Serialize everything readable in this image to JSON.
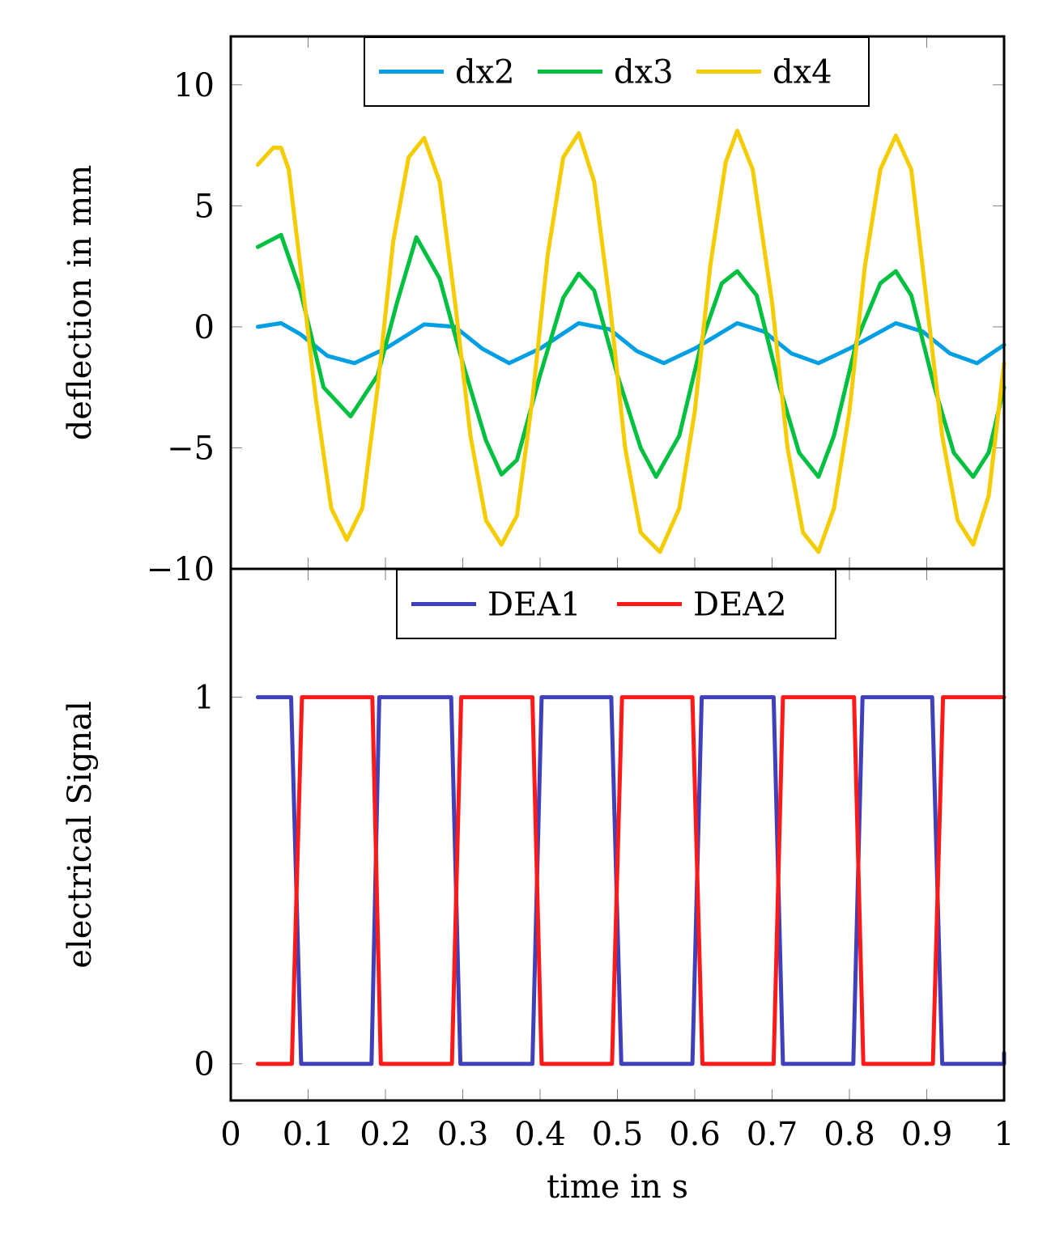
{
  "chart_data": [
    {
      "type": "line",
      "ylabel": "deflection in mm",
      "xlabel": "",
      "xlim": [
        0,
        1
      ],
      "ylim": [
        -10,
        12
      ],
      "yticks": [
        10,
        5,
        0,
        -5,
        -10
      ],
      "ytick_labels": [
        "10",
        "5",
        "0",
        "−5",
        "−10"
      ],
      "legend": [
        "dx2",
        "dx3",
        "dx4"
      ],
      "series": [
        {
          "name": "dx2",
          "color": "#009fe3",
          "x": [
            0.035,
            0.065,
            0.09,
            0.125,
            0.16,
            0.2,
            0.25,
            0.29,
            0.325,
            0.36,
            0.4,
            0.45,
            0.49,
            0.525,
            0.56,
            0.6,
            0.655,
            0.69,
            0.725,
            0.76,
            0.8,
            0.86,
            0.895,
            0.93,
            0.965,
            1.0
          ],
          "y": [
            0.0,
            0.15,
            -0.3,
            -1.2,
            -1.5,
            -0.9,
            0.1,
            0.0,
            -0.9,
            -1.5,
            -0.9,
            0.15,
            -0.1,
            -1.0,
            -1.5,
            -0.9,
            0.15,
            -0.2,
            -1.1,
            -1.5,
            -0.9,
            0.15,
            -0.2,
            -1.1,
            -1.5,
            -0.75
          ]
        },
        {
          "name": "dx3",
          "color": "#00c040",
          "x": [
            0.035,
            0.065,
            0.09,
            0.12,
            0.155,
            0.19,
            0.215,
            0.24,
            0.27,
            0.3,
            0.33,
            0.35,
            0.37,
            0.4,
            0.43,
            0.45,
            0.47,
            0.5,
            0.53,
            0.55,
            0.58,
            0.61,
            0.635,
            0.655,
            0.68,
            0.71,
            0.735,
            0.76,
            0.78,
            0.81,
            0.84,
            0.86,
            0.88,
            0.91,
            0.935,
            0.96,
            0.98,
            1.0
          ],
          "y": [
            3.3,
            3.8,
            1.5,
            -2.5,
            -3.7,
            -2.0,
            1.0,
            3.7,
            2.0,
            -1.5,
            -4.7,
            -6.1,
            -5.5,
            -2.0,
            1.2,
            2.2,
            1.5,
            -2.0,
            -5.0,
            -6.2,
            -4.5,
            -0.5,
            1.8,
            2.3,
            1.3,
            -2.5,
            -5.2,
            -6.2,
            -4.5,
            -0.5,
            1.8,
            2.3,
            1.3,
            -2.5,
            -5.2,
            -6.2,
            -5.2,
            -2.5
          ]
        },
        {
          "name": "dx4",
          "color": "#f5cc00",
          "x": [
            0.035,
            0.055,
            0.065,
            0.075,
            0.09,
            0.11,
            0.13,
            0.15,
            0.17,
            0.19,
            0.21,
            0.23,
            0.25,
            0.27,
            0.29,
            0.31,
            0.33,
            0.35,
            0.37,
            0.39,
            0.41,
            0.43,
            0.45,
            0.47,
            0.49,
            0.51,
            0.53,
            0.555,
            0.58,
            0.6,
            0.62,
            0.64,
            0.655,
            0.675,
            0.7,
            0.72,
            0.74,
            0.76,
            0.78,
            0.8,
            0.82,
            0.84,
            0.86,
            0.88,
            0.9,
            0.92,
            0.94,
            0.96,
            0.98,
            1.0
          ],
          "y": [
            6.7,
            7.4,
            7.4,
            6.5,
            2.5,
            -3.0,
            -7.5,
            -8.8,
            -7.5,
            -2.5,
            3.5,
            7.0,
            7.8,
            6.0,
            1.0,
            -4.5,
            -8.0,
            -9.0,
            -7.8,
            -3.0,
            3.0,
            7.0,
            8.0,
            6.0,
            1.0,
            -5.0,
            -8.5,
            -9.3,
            -7.5,
            -3.5,
            2.5,
            6.8,
            8.1,
            6.5,
            1.0,
            -5.0,
            -8.5,
            -9.3,
            -7.5,
            -3.5,
            2.5,
            6.5,
            7.9,
            6.5,
            1.0,
            -4.5,
            -8.0,
            -9.0,
            -7.0,
            -1.5
          ]
        }
      ]
    },
    {
      "type": "line",
      "ylabel": "electrical Signal",
      "xlabel": "time in s",
      "xlim": [
        0,
        1
      ],
      "ylim": [
        -0.1,
        1.35
      ],
      "yticks": [
        1,
        0
      ],
      "ytick_labels": [
        "1",
        "0"
      ],
      "xticks": [
        0,
        0.1,
        0.2,
        0.3,
        0.4,
        0.5,
        0.6,
        0.7,
        0.8,
        0.9,
        1
      ],
      "xtick_labels": [
        "0",
        "0.1",
        "0.2",
        "0.3",
        "0.4",
        "0.5",
        "0.6",
        "0.7",
        "0.8",
        "0.9",
        "1"
      ],
      "legend": [
        "DEA1",
        "DEA2"
      ],
      "series": [
        {
          "name": "DEA1",
          "color": "#4040bb",
          "x": [
            0.035,
            0.078,
            0.091,
            0.182,
            0.192,
            0.285,
            0.297,
            0.39,
            0.402,
            0.492,
            0.505,
            0.597,
            0.609,
            0.702,
            0.714,
            0.805,
            0.817,
            0.907,
            0.92,
            1.0,
            1.0
          ],
          "y": [
            1,
            1,
            0,
            0,
            1,
            1,
            0,
            0,
            1,
            1,
            0,
            0,
            1,
            1,
            0,
            0,
            1,
            1,
            0,
            0,
            0.03
          ]
        },
        {
          "name": "DEA2",
          "color": "#ff1a1a",
          "x": [
            0.035,
            0.079,
            0.092,
            0.183,
            0.194,
            0.286,
            0.298,
            0.39,
            0.402,
            0.493,
            0.506,
            0.597,
            0.61,
            0.702,
            0.714,
            0.806,
            0.818,
            0.908,
            0.921,
            1.0
          ],
          "y": [
            0,
            0,
            1,
            1,
            0,
            0,
            1,
            1,
            0,
            0,
            1,
            1,
            0,
            0,
            1,
            1,
            0,
            0,
            1,
            1
          ]
        }
      ]
    }
  ]
}
